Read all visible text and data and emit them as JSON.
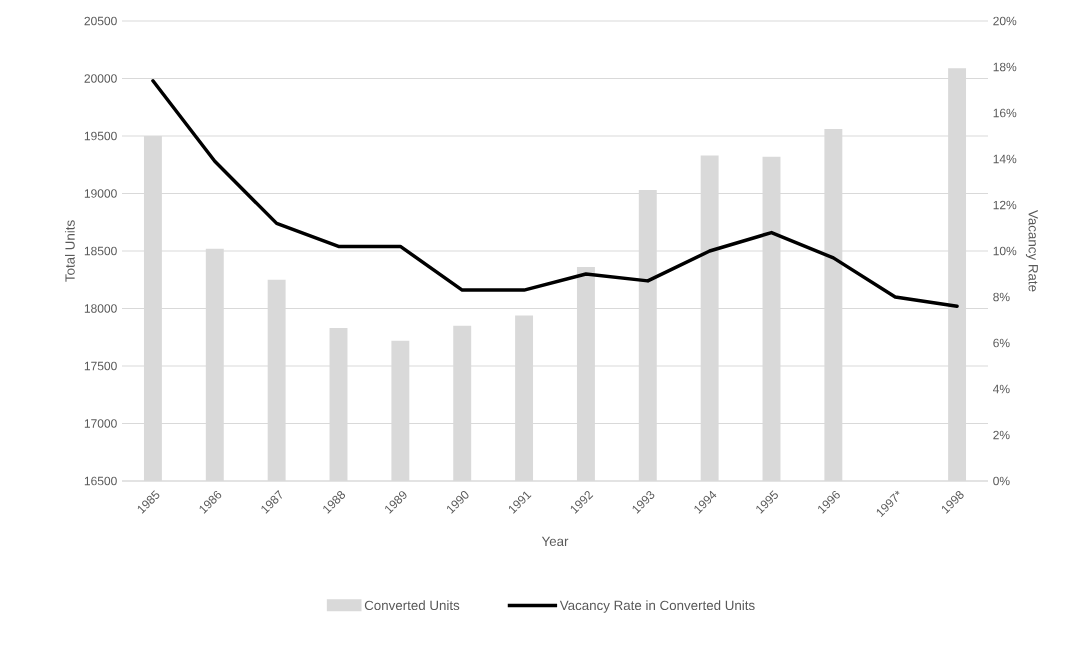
{
  "chart_data": {
    "type": "bar",
    "categories": [
      "1985",
      "1986",
      "1987",
      "1988",
      "1989",
      "1990",
      "1991",
      "1992",
      "1993",
      "1994",
      "1995",
      "1996",
      "1997*",
      "1998"
    ],
    "series": [
      {
        "name": "Converted Units",
        "color": "#d9d9d9",
        "values": [
          19500,
          18520,
          18250,
          17830,
          17720,
          17850,
          17940,
          18360,
          19030,
          19330,
          19320,
          19560,
          null,
          20090
        ]
      },
      {
        "name": "Vacancy Rate in Converted Units",
        "type": "line",
        "axis": "y2",
        "color": "#000000",
        "values": [
          17.4,
          13.9,
          11.2,
          10.2,
          10.2,
          8.3,
          8.3,
          9.0,
          8.7,
          10.0,
          10.8,
          9.7,
          8.0,
          7.6
        ]
      }
    ],
    "xlabel": "Year",
    "ylabel": "Total Units",
    "y2label": "Vacancy Rate",
    "ylim": [
      16500,
      20500
    ],
    "yticks": [
      16500,
      17000,
      17500,
      18000,
      18500,
      19000,
      19500,
      20000,
      20500
    ],
    "y2lim": [
      0,
      20
    ],
    "y2ticks": [
      {
        "value": 0,
        "label": "0%"
      },
      {
        "value": 2,
        "label": "2%"
      },
      {
        "value": 4,
        "label": "4%"
      },
      {
        "value": 6,
        "label": "6%"
      },
      {
        "value": 8,
        "label": "8%"
      },
      {
        "value": 10,
        "label": "10%"
      },
      {
        "value": 12,
        "label": "12%"
      },
      {
        "value": 14,
        "label": "14%"
      },
      {
        "value": 16,
        "label": "16%"
      },
      {
        "value": 18,
        "label": "18%"
      },
      {
        "value": 20,
        "label": "20%"
      }
    ],
    "grid": "y",
    "legend": "bottom"
  }
}
